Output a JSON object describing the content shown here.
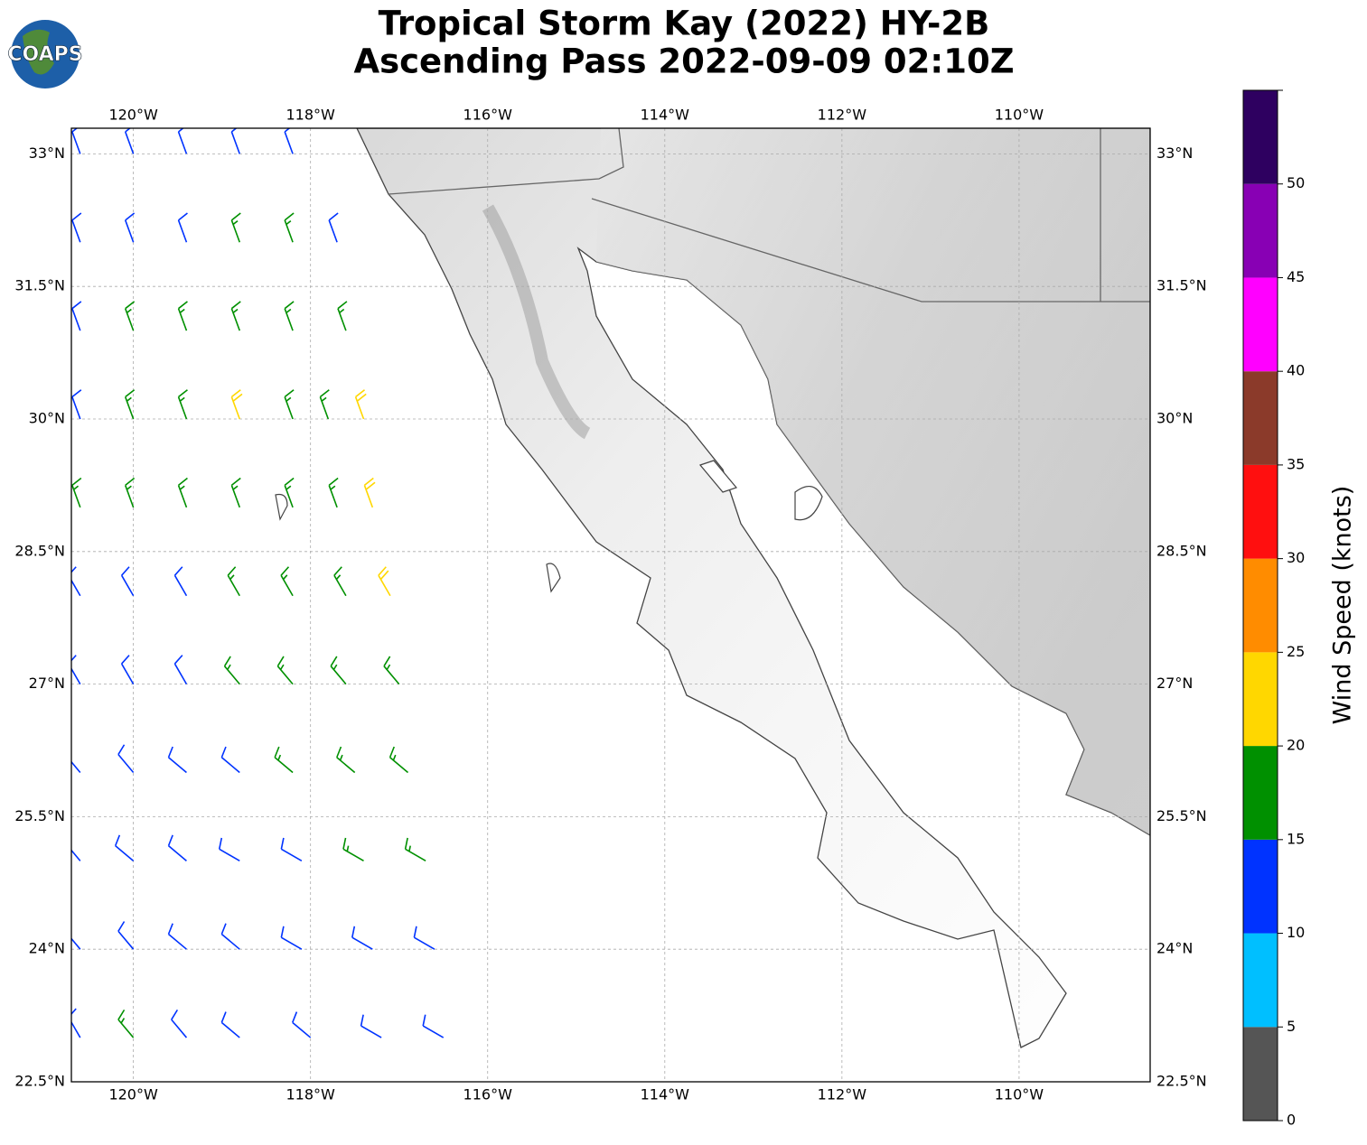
{
  "map": {
    "type": "barbs",
    "title_lines": [
      "Tropical Storm Kay (2022) HY-2B",
      "Ascending Pass 2022-09-09 02:10Z"
    ],
    "logo_text": "COAPS",
    "xlim": [
      -120.7,
      -108.52
    ],
    "ylim": [
      22.5,
      33.29
    ],
    "xticks": [
      {
        "value": -120,
        "label": "120°W"
      },
      {
        "value": -118,
        "label": "118°W"
      },
      {
        "value": -116,
        "label": "116°W"
      },
      {
        "value": -114,
        "label": "114°W"
      },
      {
        "value": -112,
        "label": "112°W"
      },
      {
        "value": -110,
        "label": "110°W"
      }
    ],
    "yticks": [
      {
        "value": 22.5,
        "label": "22.5°N"
      },
      {
        "value": 24,
        "label": "24°N"
      },
      {
        "value": 25.5,
        "label": "25.5°N"
      },
      {
        "value": 27,
        "label": "27°N"
      },
      {
        "value": 28.5,
        "label": "28.5°N"
      },
      {
        "value": 30,
        "label": "30°N"
      },
      {
        "value": 31.5,
        "label": "31.5°N"
      },
      {
        "value": 33,
        "label": "33°N"
      }
    ],
    "grid": true,
    "colorbar": {
      "label": "Wind Speed (knots)",
      "bounds": [
        0,
        5,
        10,
        15,
        20,
        25,
        30,
        35,
        40,
        45,
        50,
        55
      ],
      "colors": [
        "#555555",
        "#00bfff",
        "#0033ff",
        "#009000",
        "#ffd700",
        "#ff8c00",
        "#ff0f0f",
        "#8b3a2a",
        "#ff00ff",
        "#8800b4",
        "#2e0060"
      ],
      "ticks": [
        0,
        5,
        10,
        15,
        20,
        25,
        30,
        35,
        40,
        45,
        50
      ]
    },
    "barb_rows": [
      {
        "lat": 33.0,
        "lon": [
          -120.6,
          -120.0,
          -119.4,
          -118.8,
          -118.2
        ],
        "speed": [
          12,
          12,
          12,
          12,
          12
        ],
        "direction": [
          340,
          340,
          340,
          340,
          340
        ]
      },
      {
        "lat": 32.0,
        "lon": [
          -120.6,
          -120.0,
          -119.4,
          -118.8,
          -118.2,
          -117.7
        ],
        "speed": [
          12,
          12,
          12,
          16,
          16,
          12
        ],
        "direction": [
          340,
          340,
          340,
          340,
          340,
          340
        ]
      },
      {
        "lat": 31.0,
        "lon": [
          -120.6,
          -120.0,
          -119.4,
          -118.8,
          -118.2,
          -117.6
        ],
        "speed": [
          12,
          16,
          17,
          17,
          17,
          17
        ],
        "direction": [
          340,
          340,
          340,
          340,
          340,
          340
        ]
      },
      {
        "lat": 30.0,
        "lon": [
          -120.6,
          -120.0,
          -119.4,
          -118.8,
          -118.2,
          -117.8,
          -117.4
        ],
        "speed": [
          12,
          16,
          17,
          22,
          17,
          17,
          22
        ],
        "direction": [
          340,
          340,
          340,
          340,
          340,
          340,
          340
        ]
      },
      {
        "lat": 29.0,
        "lon": [
          -120.6,
          -120.0,
          -119.4,
          -118.8,
          -118.2,
          -117.7,
          -117.3
        ],
        "speed": [
          16,
          17,
          17,
          17,
          17,
          17,
          22
        ],
        "direction": [
          340,
          340,
          340,
          340,
          340,
          340,
          340
        ]
      },
      {
        "lat": 28.0,
        "lon": [
          -120.6,
          -120.0,
          -119.4,
          -118.8,
          -118.2,
          -117.6,
          -117.1
        ],
        "speed": [
          12,
          12,
          12,
          17,
          17,
          17,
          22
        ],
        "direction": [
          330,
          330,
          330,
          330,
          330,
          330,
          330
        ]
      },
      {
        "lat": 27.0,
        "lon": [
          -120.6,
          -120.0,
          -119.4,
          -118.8,
          -118.2,
          -117.6,
          -117.0
        ],
        "speed": [
          12,
          12,
          12,
          17,
          17,
          17,
          17
        ],
        "direction": [
          330,
          330,
          330,
          320,
          320,
          320,
          320
        ]
      },
      {
        "lat": 26.0,
        "lon": [
          -120.6,
          -120.0,
          -119.4,
          -118.8,
          -118.2,
          -117.5,
          -116.9
        ],
        "speed": [
          12,
          12,
          12,
          12,
          17,
          17,
          17
        ],
        "direction": [
          320,
          320,
          310,
          310,
          310,
          310,
          310
        ]
      },
      {
        "lat": 25.0,
        "lon": [
          -120.6,
          -120.0,
          -119.4,
          -118.8,
          -118.1,
          -117.4,
          -116.7
        ],
        "speed": [
          12,
          12,
          12,
          12,
          12,
          17,
          17
        ],
        "direction": [
          320,
          310,
          310,
          300,
          300,
          300,
          300
        ]
      },
      {
        "lat": 24.0,
        "lon": [
          -120.6,
          -120.0,
          -119.4,
          -118.8,
          -118.1,
          -117.3,
          -116.6
        ],
        "speed": [
          12,
          12,
          12,
          12,
          12,
          12,
          12
        ],
        "direction": [
          320,
          320,
          310,
          310,
          300,
          300,
          300
        ]
      },
      {
        "lat": 23.0,
        "lon": [
          -120.6,
          -120.0,
          -119.4,
          -118.8,
          -118.0,
          -117.2,
          -116.5
        ],
        "speed": [
          12,
          17,
          12,
          12,
          12,
          12,
          12
        ],
        "direction": [
          330,
          320,
          320,
          310,
          310,
          300,
          300
        ]
      }
    ]
  }
}
